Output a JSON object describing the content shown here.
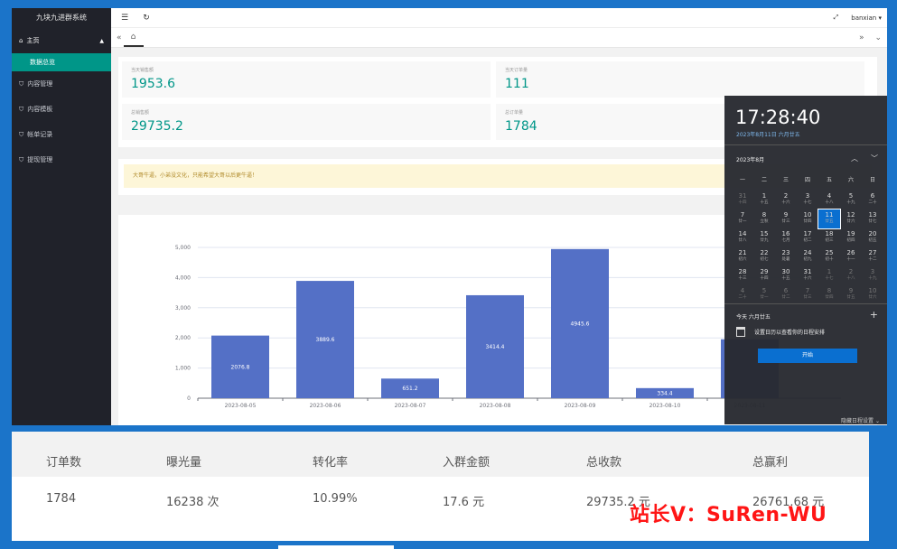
{
  "app": {
    "title": "九块九进群系统"
  },
  "sidebar": {
    "items": [
      {
        "label": "主页",
        "sub": [
          {
            "label": "数据总览"
          }
        ]
      },
      {
        "label": "内容管理"
      },
      {
        "label": "内容模板"
      },
      {
        "label": "帐单记录"
      },
      {
        "label": "提现管理"
      }
    ]
  },
  "topbar": {
    "user": "banxian"
  },
  "stats": [
    {
      "label": "当天销售额",
      "value": "1953.6"
    },
    {
      "label": "当天订单量",
      "value": "111"
    },
    {
      "label": "总销售额",
      "value": "29735.2"
    },
    {
      "label": "总订单量",
      "value": "1784"
    }
  ],
  "notice": {
    "text": "大哥牛逼，小弟没文化，只能希望大哥以后更牛逼！"
  },
  "chart_data": {
    "type": "bar",
    "categories": [
      "2023-08-05",
      "2023-08-06",
      "2023-08-07",
      "2023-08-08",
      "2023-08-09",
      "2023-08-10",
      "2023-08-11"
    ],
    "values": [
      2076.8,
      3889.6,
      651.2,
      3414.4,
      4945.6,
      334.4,
      1953.6
    ],
    "data_labels": [
      "2076.8",
      "3889.6",
      "651.2",
      "3414.4",
      "4945.6",
      "334.4",
      ""
    ],
    "ylim": [
      0,
      5000
    ],
    "yticks": [
      "0",
      "1,000",
      "2,000",
      "3,000",
      "4,000",
      "5,000"
    ],
    "color": "#5470c6"
  },
  "calendar": {
    "time": "17:28:40",
    "date": "2023年8月11日 六月廿五",
    "month": "2023年8月",
    "weekdays": [
      "一",
      "二",
      "三",
      "四",
      "五",
      "六",
      "日"
    ],
    "weeks": [
      [
        [
          "31",
          "十四",
          1
        ],
        [
          "1",
          "十五",
          0
        ],
        [
          "2",
          "十六",
          0
        ],
        [
          "3",
          "十七",
          0
        ],
        [
          "4",
          "十八",
          0
        ],
        [
          "5",
          "十九",
          0
        ],
        [
          "6",
          "二十",
          0
        ]
      ],
      [
        [
          "7",
          "廿一",
          0
        ],
        [
          "8",
          "立秋",
          0
        ],
        [
          "9",
          "廿三",
          0
        ],
        [
          "10",
          "廿四",
          0
        ],
        [
          "11",
          "廿五",
          2
        ],
        [
          "12",
          "廿六",
          0
        ],
        [
          "13",
          "廿七",
          0
        ]
      ],
      [
        [
          "14",
          "廿八",
          0
        ],
        [
          "15",
          "廿九",
          0
        ],
        [
          "16",
          "七月",
          0
        ],
        [
          "17",
          "初二",
          0
        ],
        [
          "18",
          "初三",
          0
        ],
        [
          "19",
          "初四",
          0
        ],
        [
          "20",
          "初五",
          0
        ]
      ],
      [
        [
          "21",
          "初六",
          0
        ],
        [
          "22",
          "初七",
          0
        ],
        [
          "23",
          "处暑",
          0
        ],
        [
          "24",
          "初九",
          0
        ],
        [
          "25",
          "初十",
          0
        ],
        [
          "26",
          "十一",
          0
        ],
        [
          "27",
          "十二",
          0
        ]
      ],
      [
        [
          "28",
          "十三",
          0
        ],
        [
          "29",
          "十四",
          0
        ],
        [
          "30",
          "十五",
          0
        ],
        [
          "31",
          "十六",
          0
        ],
        [
          "1",
          "十七",
          1
        ],
        [
          "2",
          "十八",
          1
        ],
        [
          "3",
          "十九",
          1
        ]
      ],
      [
        [
          "4",
          "二十",
          1
        ],
        [
          "5",
          "廿一",
          1
        ],
        [
          "6",
          "廿二",
          1
        ],
        [
          "7",
          "廿三",
          1
        ],
        [
          "8",
          "廿四",
          1
        ],
        [
          "9",
          "廿五",
          1
        ],
        [
          "10",
          "廿六",
          1
        ]
      ]
    ],
    "today_label": "今天 六月廿五",
    "event_text": "设置日历以查看你的日程安排",
    "start_button": "开始",
    "hide_label": "隐藏日程设置"
  },
  "summary": {
    "headers": [
      "订单数",
      "曝光量",
      "转化率",
      "入群金额",
      "总收款",
      "总赢利"
    ],
    "values": [
      "1784",
      "16238 次",
      "10.99%",
      "17.6 元",
      "29735.2 元",
      "26761.68 元"
    ]
  },
  "watermark": "站长V：SuRen-WU"
}
